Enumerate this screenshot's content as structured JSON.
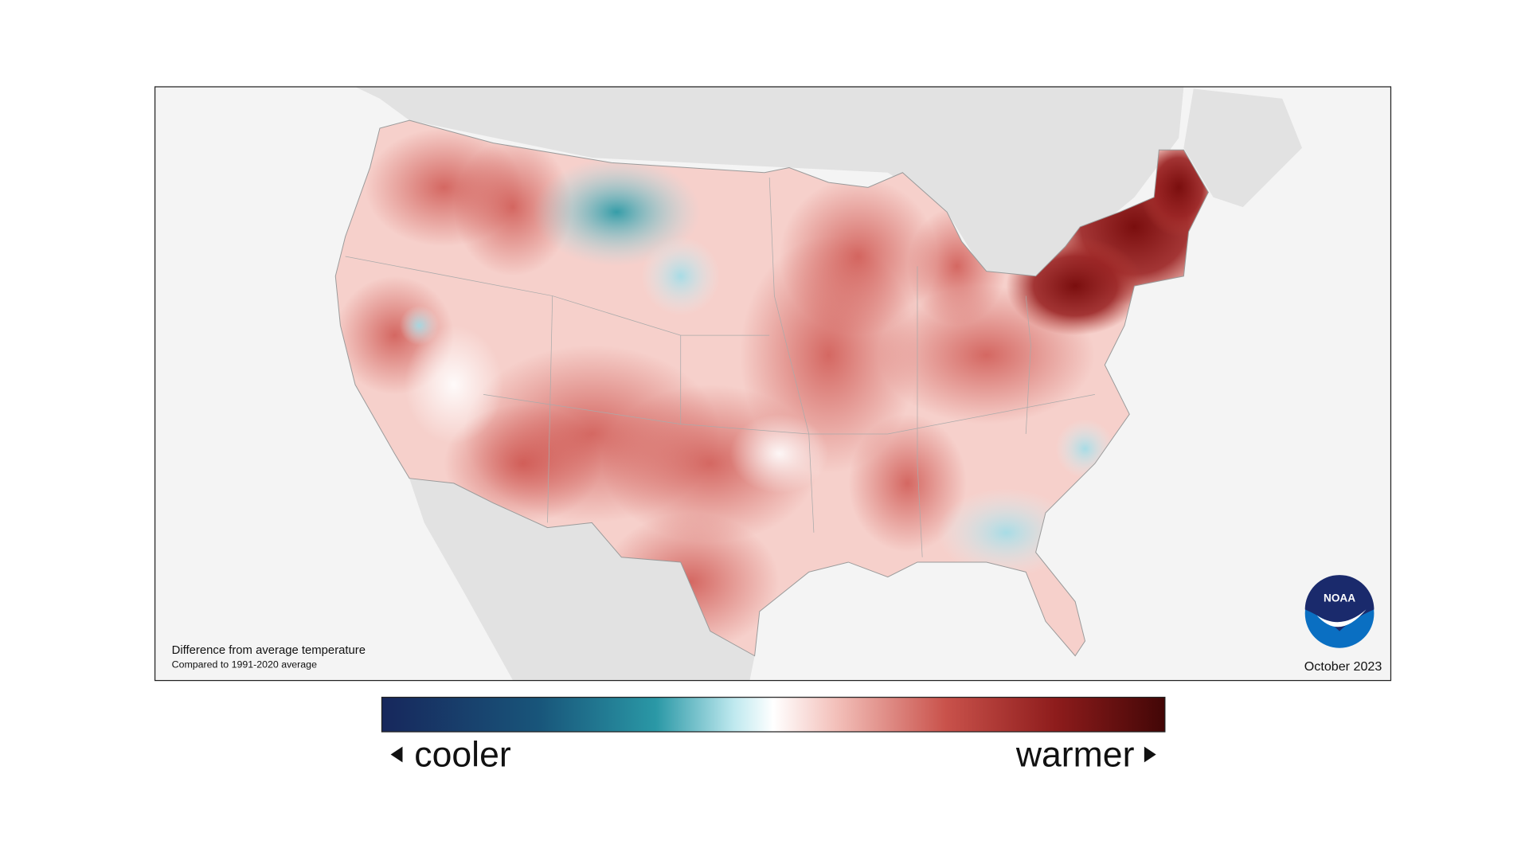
{
  "map": {
    "notes": {
      "title": "Difference from average temperature",
      "subtitle": "Compared to 1991-2020 average"
    },
    "date": "October 2023",
    "logo": "NOAA",
    "legend": {
      "low": "cooler",
      "high": "warmer"
    }
  }
}
